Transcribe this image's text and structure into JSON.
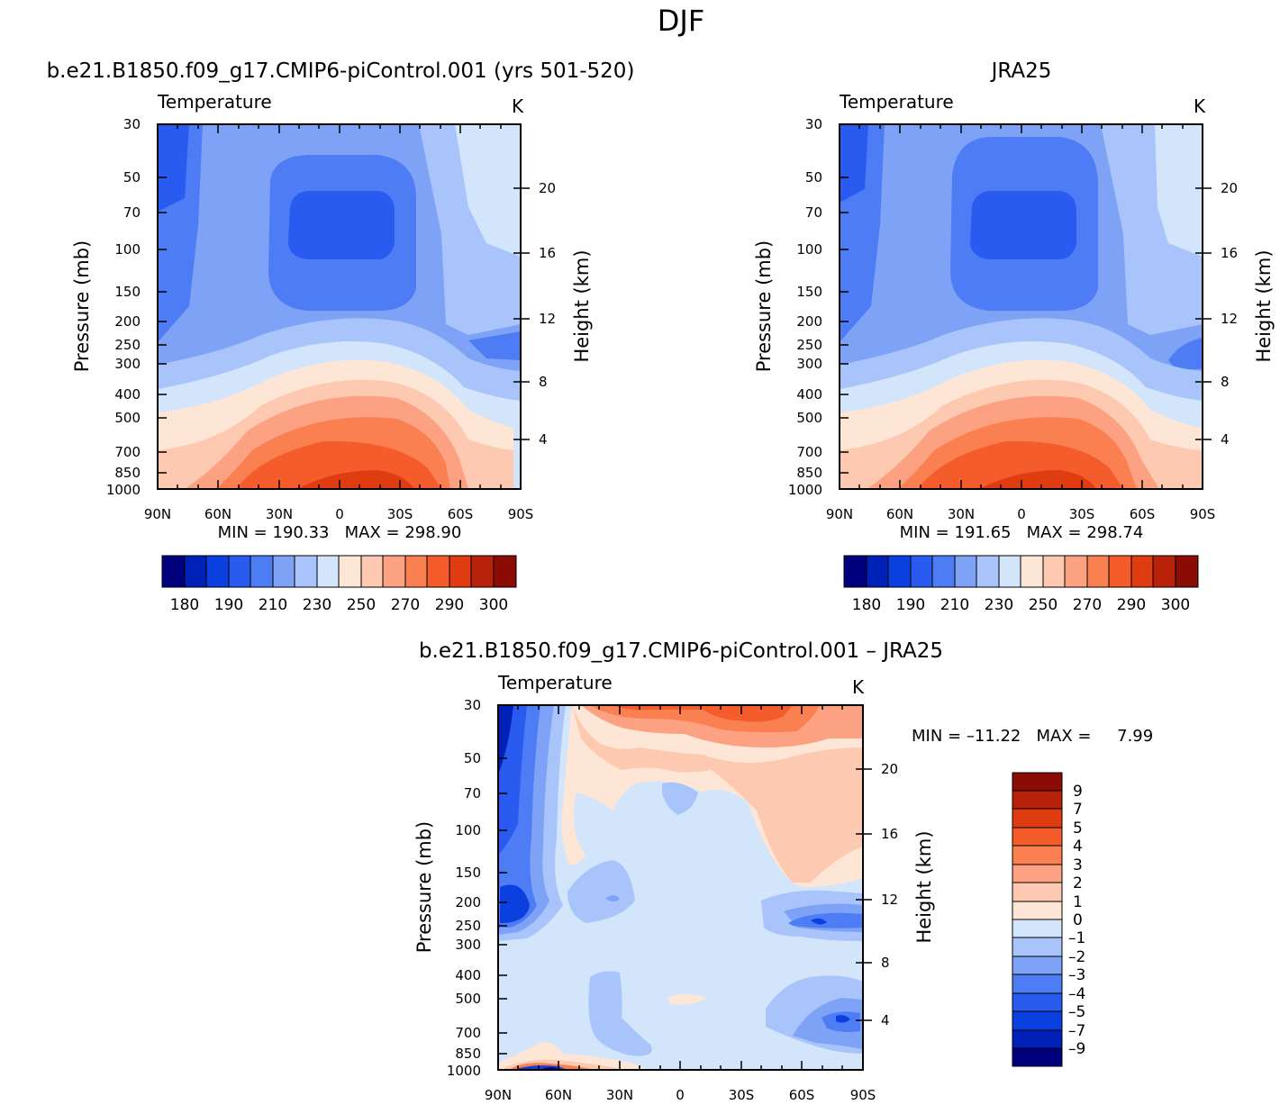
{
  "figure": {
    "title": "DJF"
  },
  "chart_data": [
    {
      "type": "heatmap",
      "title": "b.e21.B1850.f09_g17.CMIP6-piControl.001 (yrs 501-520)",
      "subtitle_left": "Temperature",
      "subtitle_right": "K",
      "xlabel": "",
      "ylabel": "Pressure (mb)",
      "y2label": "Height (km)",
      "x_ticks": [
        "90N",
        "60N",
        "30N",
        "0",
        "30S",
        "60S",
        "90S"
      ],
      "y_ticks": [
        "30",
        "50",
        "70",
        "100",
        "150",
        "200",
        "250",
        "300",
        "400",
        "500",
        "700",
        "850",
        "1000"
      ],
      "y2_ticks": [
        "20",
        "16",
        "12",
        "8",
        "4"
      ],
      "y_scale": "log",
      "min_max_text": "MIN = 190.33   MAX = 298.90",
      "colorbar": {
        "orientation": "horizontal",
        "labels": [
          "180",
          "190",
          "210",
          "230",
          "250",
          "270",
          "290",
          "300"
        ],
        "colors": [
          "#00007f",
          "#0021b8",
          "#0a3fe0",
          "#2a5bf0",
          "#4d7cf5",
          "#7ea2f5",
          "#a9c4fa",
          "#d2e5fb",
          "#fee6d6",
          "#fdc9b0",
          "#fca283",
          "#fa7f51",
          "#f55c2c",
          "#e03c12",
          "#b8220b",
          "#8a0c05"
        ]
      }
    },
    {
      "type": "heatmap",
      "title": "JRA25",
      "subtitle_left": "Temperature",
      "subtitle_right": "K",
      "xlabel": "",
      "ylabel": "Pressure (mb)",
      "y2label": "Height (km)",
      "x_ticks": [
        "90N",
        "60N",
        "30N",
        "0",
        "30S",
        "60S",
        "90S"
      ],
      "y_ticks": [
        "30",
        "50",
        "70",
        "100",
        "150",
        "200",
        "250",
        "300",
        "400",
        "500",
        "700",
        "850",
        "1000"
      ],
      "y2_ticks": [
        "20",
        "16",
        "12",
        "8",
        "4"
      ],
      "y_scale": "log",
      "min_max_text": "MIN = 191.65   MAX = 298.74",
      "colorbar": {
        "orientation": "horizontal",
        "labels": [
          "180",
          "190",
          "210",
          "230",
          "250",
          "270",
          "290",
          "300"
        ],
        "colors": [
          "#00007f",
          "#0021b8",
          "#0a3fe0",
          "#2a5bf0",
          "#4d7cf5",
          "#7ea2f5",
          "#a9c4fa",
          "#d2e5fb",
          "#fee6d6",
          "#fdc9b0",
          "#fca283",
          "#fa7f51",
          "#f55c2c",
          "#e03c12",
          "#b8220b",
          "#8a0c05"
        ]
      }
    },
    {
      "type": "heatmap",
      "title": "b.e21.B1850.f09_g17.CMIP6-piControl.001 – JRA25",
      "subtitle_left": "Temperature",
      "subtitle_right": "K",
      "xlabel": "",
      "ylabel": "Pressure (mb)",
      "y2label": "Height (km)",
      "x_ticks": [
        "90N",
        "60N",
        "30N",
        "0",
        "30S",
        "60S",
        "90S"
      ],
      "y_ticks": [
        "30",
        "50",
        "70",
        "100",
        "150",
        "200",
        "250",
        "300",
        "400",
        "500",
        "700",
        "850",
        "1000"
      ],
      "y2_ticks": [
        "20",
        "16",
        "12",
        "8",
        "4"
      ],
      "y_scale": "log",
      "min_max_text": "MIN = –11.22   MAX =     7.99",
      "colorbar": {
        "orientation": "vertical",
        "labels": [
          "9",
          "7",
          "5",
          "4",
          "3",
          "2",
          "1",
          "0",
          "–1",
          "–2",
          "–3",
          "–4",
          "–5",
          "–7",
          "–9"
        ],
        "colors": [
          "#8a0c05",
          "#b8220b",
          "#e03c12",
          "#f55c2c",
          "#fa7f51",
          "#fca283",
          "#fdc9b0",
          "#fee6d6",
          "#d2e5fb",
          "#a9c4fa",
          "#7ea2f5",
          "#4d7cf5",
          "#2a5bf0",
          "#0a3fe0",
          "#0021b8",
          "#00007f"
        ]
      }
    }
  ]
}
